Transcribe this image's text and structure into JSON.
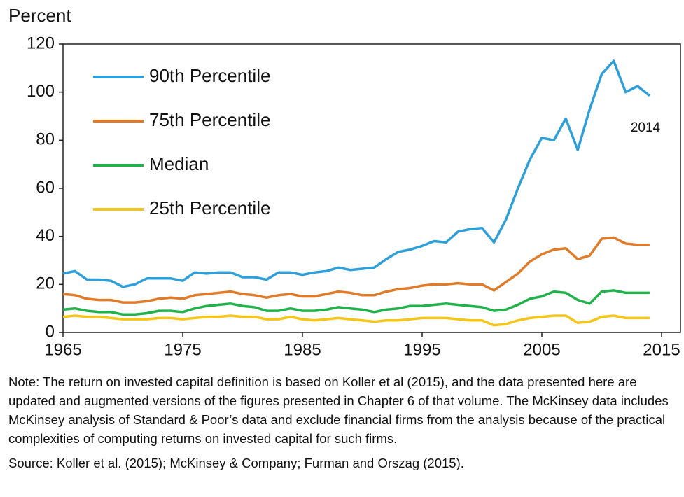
{
  "chart_data": {
    "type": "line",
    "y_label": "Percent",
    "x": [
      1965,
      1966,
      1967,
      1968,
      1969,
      1970,
      1971,
      1972,
      1973,
      1974,
      1975,
      1976,
      1977,
      1978,
      1979,
      1980,
      1981,
      1982,
      1983,
      1984,
      1985,
      1986,
      1987,
      1988,
      1989,
      1990,
      1991,
      1992,
      1993,
      1994,
      1995,
      1996,
      1997,
      1998,
      1999,
      2000,
      2001,
      2002,
      2003,
      2004,
      2005,
      2006,
      2007,
      2008,
      2009,
      2010,
      2011,
      2012,
      2013,
      2014
    ],
    "series": [
      {
        "name": "90th Percentile",
        "color": "#2e9fd9",
        "values": [
          24.5,
          25.5,
          22,
          22,
          21.5,
          19,
          20,
          22.5,
          22.5,
          22.5,
          21.5,
          25,
          24.5,
          25,
          25,
          23,
          23,
          22,
          25,
          25,
          24,
          25,
          25.5,
          27,
          26,
          26.5,
          27,
          30.5,
          33.5,
          34.5,
          36,
          38,
          37.5,
          42,
          43,
          43.5,
          37.5,
          47,
          60,
          72,
          81,
          80,
          89,
          76,
          93,
          107.5,
          113,
          100,
          102.5,
          98.5
        ]
      },
      {
        "name": "75th Percentile",
        "color": "#e07b2a",
        "values": [
          16,
          15.5,
          14,
          13.5,
          13.5,
          12.5,
          12.5,
          13,
          14,
          14.5,
          14,
          15.5,
          16,
          16.5,
          17,
          16,
          15.5,
          14.5,
          15.5,
          16,
          15,
          15,
          16,
          17,
          16.5,
          15.5,
          15.5,
          17,
          18,
          18.5,
          19.5,
          20,
          20,
          20.5,
          20,
          20,
          17.5,
          21,
          24.5,
          29.5,
          32.5,
          34.5,
          35,
          30.5,
          32,
          39,
          39.5,
          37,
          36.5,
          36.5
        ]
      },
      {
        "name": "Median",
        "color": "#22b24c",
        "values": [
          9.5,
          10,
          9,
          8.5,
          8.5,
          7.5,
          7.5,
          8,
          9,
          9,
          8.5,
          10,
          11,
          11.5,
          12,
          11,
          10.5,
          9,
          9,
          10,
          9,
          9,
          9.5,
          10.5,
          10,
          9.5,
          8.5,
          9.5,
          10,
          11,
          11,
          11.5,
          12,
          11.5,
          11,
          10.5,
          9,
          9.5,
          11.5,
          14,
          15,
          17,
          16.5,
          13.5,
          12,
          17,
          17.5,
          16.5,
          16.5,
          16.5
        ]
      },
      {
        "name": "25th Percentile",
        "color": "#f5c518",
        "values": [
          6.5,
          7,
          6.5,
          6.5,
          6,
          5.5,
          5.5,
          5.5,
          6,
          6,
          5.5,
          6,
          6.5,
          6.5,
          7,
          6.5,
          6.5,
          5.5,
          5.5,
          6.5,
          5.5,
          5,
          5.5,
          6,
          5.5,
          5,
          4.5,
          5,
          5,
          5.5,
          6,
          6,
          6,
          5.5,
          5,
          5,
          3,
          3.5,
          5,
          6,
          6.5,
          7,
          7,
          4,
          4.5,
          6.5,
          7,
          6,
          6,
          6
        ]
      }
    ],
    "xlim": [
      1965,
      2015
    ],
    "xticks": [
      1965,
      1975,
      1985,
      1995,
      2005,
      2015
    ],
    "ylim": [
      0,
      120
    ],
    "yticks": [
      0,
      20,
      40,
      60,
      80,
      100,
      120
    ],
    "legend": "upper left",
    "annotation": "2014",
    "note": "Note: The return on invested capital definition is based on Koller et al (2015), and the data presented here are updated and augmented versions of the figures presented in Chapter 6 of that volume. The McKinsey data includes McKinsey analysis of Standard & Poor’s data and exclude financial firms from the analysis because of the practical complexities of computing returns on invested capital for such firms.",
    "source": "Source: Koller et al. (2015); McKinsey & Company; Furman and Orszag (2015)."
  }
}
